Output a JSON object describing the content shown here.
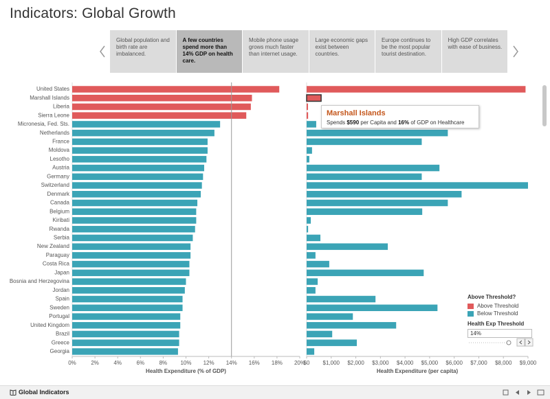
{
  "header": {
    "title": "Indicators: Global Growth"
  },
  "story_points": [
    "Global population and birth rate are imbalanced.",
    "A few countries spend more than 14% GDP on health care.",
    "Mobile phone usage grows much faster than internet usage.",
    "Large economic gaps exist between countries.",
    "Europe continues to be the most popular tourist destination.",
    "High GDP correlates with ease of business."
  ],
  "selected_story_point": 1,
  "chart_data": [
    {
      "type": "bar",
      "orientation": "horizontal",
      "x_label": "Health Expenditure (% of GDP)",
      "categories": [
        "United States",
        "Marshall Islands",
        "Liberia",
        "Sierra Leone",
        "Micronesia, Fed. Sts.",
        "Netherlands",
        "France",
        "Moldova",
        "Lesotho",
        "Austria",
        "Germany",
        "Switzerland",
        "Denmark",
        "Canada",
        "Belgium",
        "Kiribati",
        "Rwanda",
        "Serbia",
        "New Zealand",
        "Paraguay",
        "Costa Rica",
        "Japan",
        "Bosnia and Herzegovina",
        "Jordan",
        "Spain",
        "Sweden",
        "Portugal",
        "United Kingdom",
        "Brazil",
        "Greece",
        "Georgia"
      ],
      "values": [
        18.2,
        15.8,
        15.7,
        15.3,
        13.0,
        12.5,
        11.9,
        11.9,
        11.8,
        11.6,
        11.5,
        11.4,
        11.3,
        11.0,
        10.9,
        10.9,
        10.8,
        10.6,
        10.4,
        10.4,
        10.3,
        10.3,
        10.0,
        9.9,
        9.7,
        9.7,
        9.5,
        9.5,
        9.4,
        9.4,
        9.3
      ],
      "xlim": [
        0,
        20
      ],
      "xticks": [
        {
          "value": 0,
          "label": "0%"
        },
        {
          "value": 2,
          "label": "2%"
        },
        {
          "value": 4,
          "label": "4%"
        },
        {
          "value": 6,
          "label": "6%"
        },
        {
          "value": 8,
          "label": "8%"
        },
        {
          "value": 10,
          "label": "10%"
        },
        {
          "value": 12,
          "label": "12%"
        },
        {
          "value": 14,
          "label": "14%"
        },
        {
          "value": 16,
          "label": "16%"
        },
        {
          "value": 18,
          "label": "18%"
        },
        {
          "value": 20,
          "label": "20%"
        }
      ]
    },
    {
      "type": "bar",
      "orientation": "horizontal",
      "x_label": "Health Expenditure (per capita)",
      "values": [
        8900,
        590,
        55,
        60,
        390,
        5740,
        4680,
        220,
        110,
        5400,
        4680,
        9000,
        6300,
        5740,
        4700,
        170,
        60,
        560,
        3300,
        360,
        920,
        4760,
        450,
        360,
        2800,
        5320,
        1880,
        3640,
        1040,
        2040,
        310
      ],
      "xlim": [
        0,
        9000
      ],
      "xticks": [
        {
          "value": 0,
          "label": "$0"
        },
        {
          "value": 1000,
          "label": "$1,000"
        },
        {
          "value": 2000,
          "label": "$2,000"
        },
        {
          "value": 3000,
          "label": "$3,000"
        },
        {
          "value": 4000,
          "label": "$4,000"
        },
        {
          "value": 5000,
          "label": "$5,000"
        },
        {
          "value": 6000,
          "label": "$6,000"
        },
        {
          "value": 7000,
          "label": "$7,000"
        },
        {
          "value": 8000,
          "label": "$8,000"
        },
        {
          "value": 9000,
          "label": "$9,000"
        }
      ]
    }
  ],
  "legend": {
    "title": "Above Threshold?",
    "items": [
      {
        "name": "Above Threshold",
        "color": "#e05a5b"
      },
      {
        "name": "Below Threshold",
        "color": "#3ba4b6"
      }
    ]
  },
  "threshold": {
    "label": "Health Exp Threshold",
    "value": 14,
    "value_label": "14%"
  },
  "tooltip": {
    "title": "Marshall Islands",
    "parts": [
      "Spends ",
      "$590",
      " per Capita and ",
      "16%",
      " of GDP on Healthcare"
    ]
  },
  "footer": {
    "title": "Global Indicators"
  }
}
